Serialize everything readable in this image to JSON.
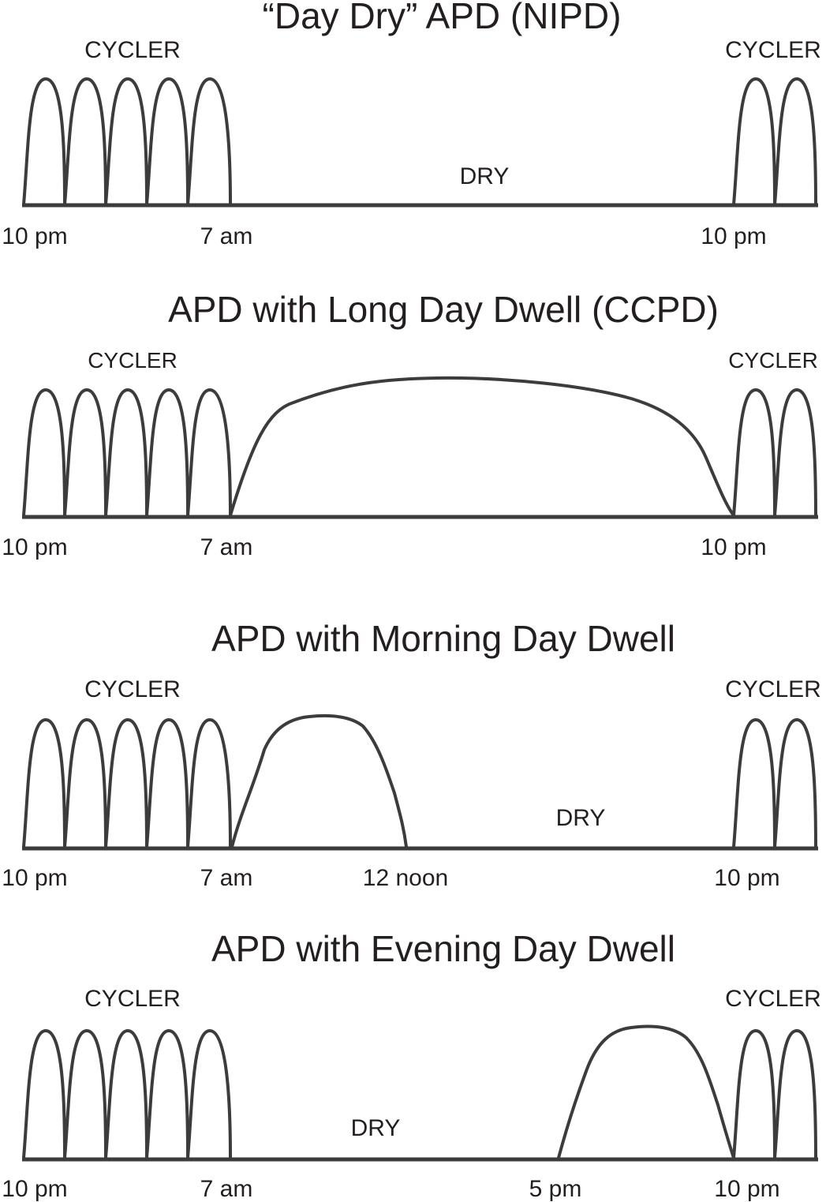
{
  "panels": [
    {
      "id": "day-dry",
      "title": "“Day Dry” APD (NIPD)",
      "cycler_left": "CYCLER",
      "cycler_right": "CYCLER",
      "dry_label": "DRY",
      "time_labels": [
        "10 pm",
        "7 am",
        "10 pm"
      ]
    },
    {
      "id": "long-day-dwell",
      "title": "APD with Long Day Dwell (CCPD)",
      "cycler_left": "CYCLER",
      "cycler_right": "CYCLER",
      "dry_label": "",
      "time_labels": [
        "10 pm",
        "7 am",
        "10 pm"
      ]
    },
    {
      "id": "morning-day-dwell",
      "title": "APD with Morning Day Dwell",
      "cycler_left": "CYCLER",
      "cycler_right": "CYCLER",
      "dry_label": "DRY",
      "time_labels": [
        "10 pm",
        "7 am",
        "12 noon",
        "10 pm"
      ]
    },
    {
      "id": "evening-day-dwell",
      "title": "APD with Evening Day Dwell",
      "cycler_left": "CYCLER",
      "cycler_right": "CYCLER",
      "dry_label": "DRY",
      "time_labels": [
        "10 pm",
        "7 am",
        "5 pm",
        "10 pm"
      ]
    }
  ],
  "colors": {
    "ink": "#3c3c3c",
    "text": "#231f20",
    "background": "#ffffff"
  }
}
